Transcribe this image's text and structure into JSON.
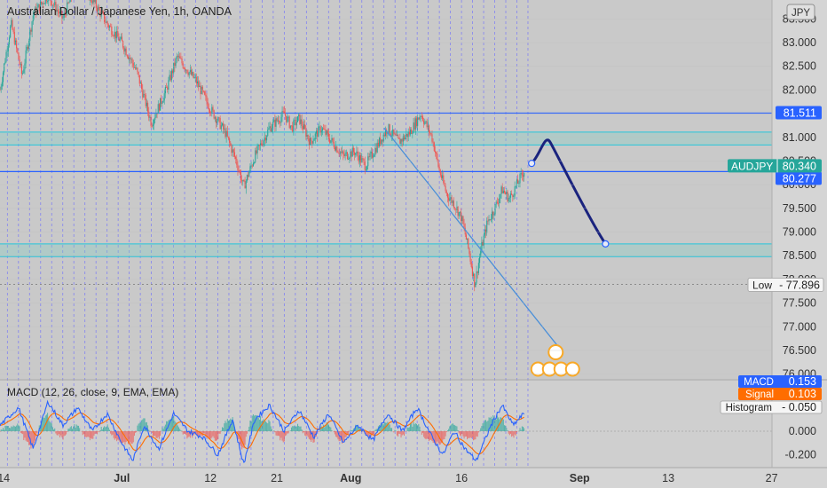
{
  "header": {
    "title": "Australian Dollar / Japanese Yen, 1h, OANDA",
    "currency_button": "JPY"
  },
  "chart_data": [
    {
      "type": "candlestick",
      "title": "Australian Dollar / Japanese Yen, 1h, OANDA",
      "symbol": "AUDJPY",
      "y_axis": {
        "range": [
          75.9,
          83.9
        ],
        "ticks": [
          "83.500",
          "83.000",
          "82.500",
          "82.000",
          "81.500",
          "81.000",
          "80.500",
          "80.000",
          "79.500",
          "79.000",
          "78.500",
          "78.000",
          "77.500",
          "77.000",
          "76.500",
          "76.000"
        ]
      },
      "x_axis": {
        "ticks": [
          {
            "label": "14",
            "x": 14
          },
          {
            "label": "Jul",
            "x": 30
          },
          {
            "label": "12",
            "x": 42
          },
          {
            "label": "21",
            "x": 51
          },
          {
            "label": "Aug",
            "x": 61
          },
          {
            "label": "16",
            "x": 76
          },
          {
            "label": "Sep",
            "x": 92
          },
          {
            "label": "13",
            "x": 104
          },
          {
            "label": "27",
            "x": 118
          }
        ],
        "range": [
          13.5,
          125.5
        ]
      },
      "price_path": [
        [
          13.5,
          82.0
        ],
        [
          15,
          83.4
        ],
        [
          16.5,
          82.3
        ],
        [
          18,
          83.6
        ],
        [
          20,
          84.0
        ],
        [
          22,
          83.5
        ],
        [
          24,
          84.3
        ],
        [
          26,
          83.9
        ],
        [
          28,
          83.4
        ],
        [
          30,
          83.0
        ],
        [
          32,
          82.4
        ],
        [
          34,
          81.3
        ],
        [
          36,
          82.0
        ],
        [
          37.5,
          82.7
        ],
        [
          40,
          82.2
        ],
        [
          42,
          81.6
        ],
        [
          44,
          81.1
        ],
        [
          45.5,
          80.5
        ],
        [
          46.5,
          79.95
        ],
        [
          48,
          80.6
        ],
        [
          50,
          81.2
        ],
        [
          52,
          81.5
        ],
        [
          53,
          81.2
        ],
        [
          54,
          81.4
        ],
        [
          55.5,
          80.9
        ],
        [
          57,
          81.2
        ],
        [
          58.5,
          80.9
        ],
        [
          60,
          80.6
        ],
        [
          61.5,
          80.7
        ],
        [
          63,
          80.4
        ],
        [
          64.5,
          80.8
        ],
        [
          66,
          81.2
        ],
        [
          67.5,
          80.9
        ],
        [
          69,
          81.1
        ],
        [
          70.5,
          81.5
        ],
        [
          72,
          81.0
        ],
        [
          73,
          80.3
        ],
        [
          74,
          79.8
        ],
        [
          75,
          79.6
        ],
        [
          76,
          79.3
        ],
        [
          77,
          78.6
        ],
        [
          77.8,
          77.9
        ],
        [
          78.6,
          78.6
        ],
        [
          79.5,
          79.2
        ],
        [
          80.5,
          79.5
        ],
        [
          81.5,
          79.9
        ],
        [
          82.5,
          79.7
        ],
        [
          83.5,
          80.0
        ],
        [
          84.5,
          80.3
        ]
      ],
      "horizontal_levels": [
        {
          "price": 81.511,
          "label": "81.511",
          "color": "#2962ff"
        },
        {
          "price": 80.277,
          "label": "80.277",
          "color": "#2962ff"
        },
        {
          "price": 80.34,
          "label": "80.340",
          "color": "#26a69a"
        }
      ],
      "zones": [
        {
          "top": 81.11,
          "bottom": 80.84,
          "color": "#80cbc4"
        },
        {
          "top": 78.75,
          "bottom": 78.48,
          "color": "#80cbc4"
        }
      ],
      "trendline": {
        "from": [
          65.5,
          81.2
        ],
        "to": [
          89.0,
          76.6
        ]
      },
      "projection": [
        [
          85.5,
          80.45
        ],
        [
          88.0,
          80.9
        ],
        [
          90.0,
          80.0
        ],
        [
          95.5,
          78.75
        ]
      ],
      "current_price": {
        "symbol": "AUDJPY",
        "value": "80.340"
      },
      "low_marker": {
        "label": "Low",
        "value": "77.896",
        "price": 77.896
      },
      "grid": true,
      "event_markers": 5
    },
    {
      "type": "line",
      "title": "MACD (12, 26, close, 9, EMA, EMA)",
      "y_axis": {
        "range": [
          -0.3,
          0.42
        ],
        "ticks": [
          "0.200",
          "0.000",
          "-0.200"
        ]
      },
      "series": [
        {
          "name": "MACD",
          "value": "0.153",
          "color": "#2962ff"
        },
        {
          "name": "Signal",
          "value": "0.103",
          "color": "#ff6d00"
        },
        {
          "name": "Histogram",
          "value": "0.050",
          "color": "#26a69a"
        }
      ],
      "macd_path": [
        [
          13.5,
          0.05
        ],
        [
          16,
          0.2
        ],
        [
          18,
          -0.15
        ],
        [
          20,
          0.25
        ],
        [
          22,
          0.05
        ],
        [
          24,
          0.2
        ],
        [
          26,
          0.0
        ],
        [
          28,
          0.15
        ],
        [
          30,
          -0.1
        ],
        [
          31.5,
          -0.25
        ],
        [
          33,
          0.05
        ],
        [
          35,
          -0.15
        ],
        [
          37,
          0.15
        ],
        [
          39,
          0.0
        ],
        [
          41,
          -0.05
        ],
        [
          43,
          -0.2
        ],
        [
          45,
          0.1
        ],
        [
          46.5,
          -0.28
        ],
        [
          48,
          0.1
        ],
        [
          50,
          0.22
        ],
        [
          52,
          0.0
        ],
        [
          54,
          0.18
        ],
        [
          56,
          -0.05
        ],
        [
          58,
          0.15
        ],
        [
          60,
          -0.1
        ],
        [
          62,
          0.05
        ],
        [
          64,
          -0.08
        ],
        [
          66,
          0.15
        ],
        [
          68,
          0.0
        ],
        [
          70,
          0.2
        ],
        [
          72,
          -0.05
        ],
        [
          73.5,
          -0.2
        ],
        [
          75,
          0.0
        ],
        [
          76.5,
          -0.15
        ],
        [
          78,
          -0.25
        ],
        [
          80,
          0.05
        ],
        [
          81.5,
          0.22
        ],
        [
          83,
          0.05
        ],
        [
          84.5,
          0.153
        ]
      ]
    }
  ]
}
